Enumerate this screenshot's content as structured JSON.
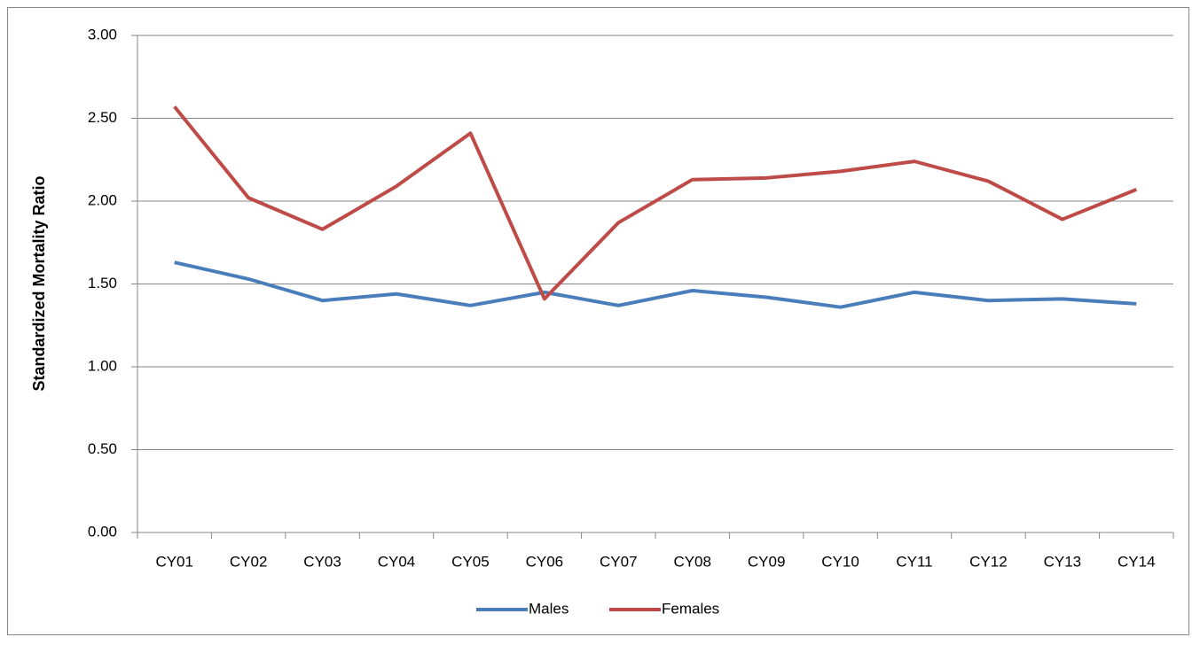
{
  "chart_data": {
    "type": "line",
    "y_label": "Standardized Mortality Ratio",
    "categories": [
      "CY01",
      "CY02",
      "CY03",
      "CY04",
      "CY05",
      "CY06",
      "CY07",
      "CY08",
      "CY09",
      "CY10",
      "CY11",
      "CY12",
      "CY13",
      "CY14"
    ],
    "series": [
      {
        "name": "Males",
        "color": "#4a7ebb",
        "values": [
          1.63,
          1.53,
          1.4,
          1.44,
          1.37,
          1.45,
          1.37,
          1.46,
          1.42,
          1.36,
          1.45,
          1.4,
          1.41,
          1.38
        ]
      },
      {
        "name": "Females",
        "color": "#be4b48",
        "values": [
          2.57,
          2.02,
          1.83,
          2.09,
          2.41,
          1.41,
          1.87,
          2.13,
          2.14,
          2.18,
          2.24,
          2.12,
          1.89,
          2.07
        ]
      }
    ],
    "ylim": [
      0,
      3
    ],
    "yticks": [
      {
        "value": 0,
        "label": "0.00"
      },
      {
        "value": 0.5,
        "label": "0.50"
      },
      {
        "value": 1,
        "label": "1.00"
      },
      {
        "value": 1.5,
        "label": "1.50"
      },
      {
        "value": 2,
        "label": "2.00"
      },
      {
        "value": 2.5,
        "label": "2.50"
      },
      {
        "value": 3,
        "label": "3.00"
      }
    ],
    "grid": true,
    "legend": "bottom"
  }
}
